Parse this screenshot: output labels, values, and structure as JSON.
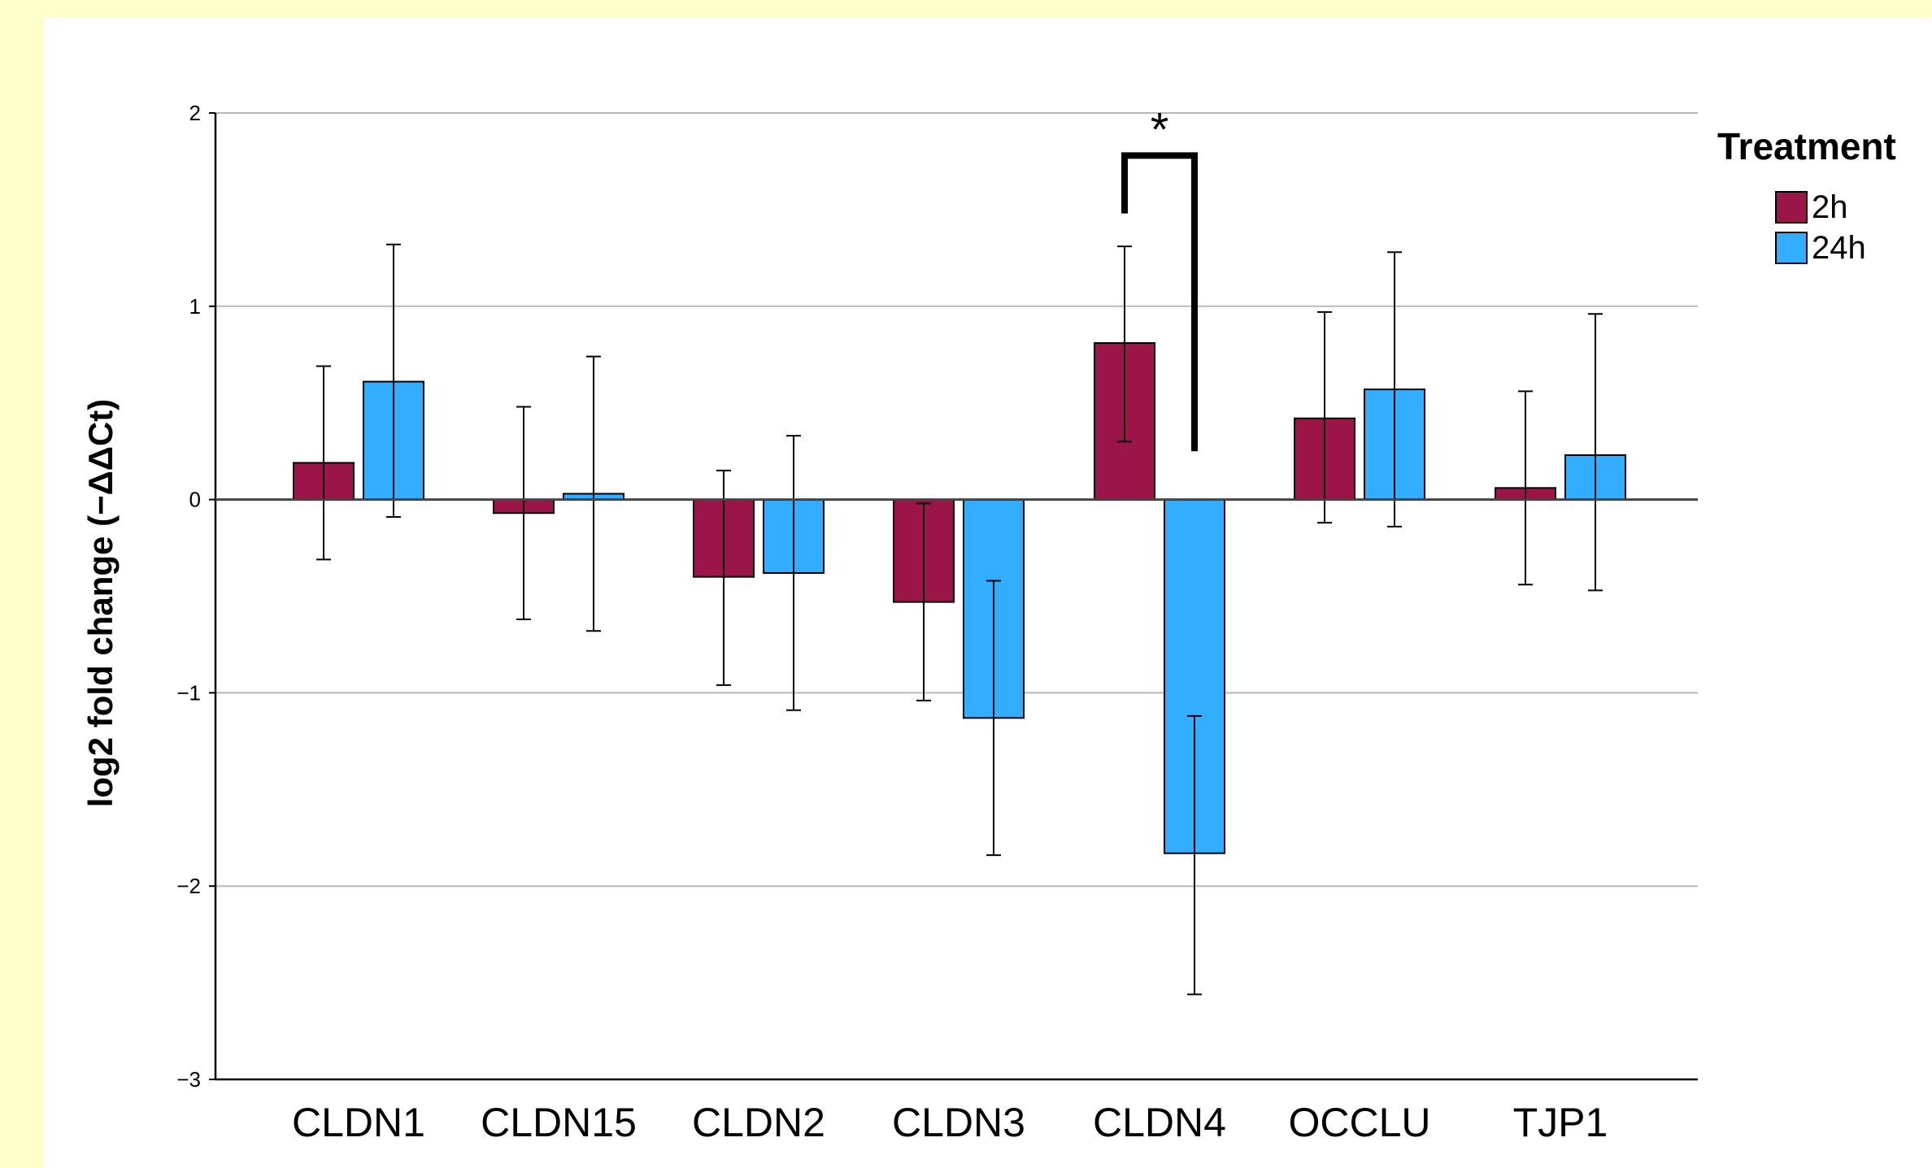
{
  "chart_data": {
    "type": "bar",
    "title": "",
    "xlabel": "",
    "ylabel": "log2 fold change (−ΔΔCt)",
    "ylim": [
      -3,
      2
    ],
    "yticks": [
      2,
      1,
      0,
      -1,
      -2,
      -3
    ],
    "ytick_labels": [
      "2",
      "1",
      "0",
      "−1",
      "−2",
      "−3"
    ],
    "grid": "horizontal",
    "categories": [
      "CLDN1",
      "CLDN15",
      "CLDN2",
      "CLDN3",
      "CLDN4",
      "OCCLU",
      "TJP1"
    ],
    "series": [
      {
        "name": "2h",
        "color": "#9c1548",
        "values": [
          0.19,
          -0.07,
          -0.4,
          -0.53,
          0.81,
          0.42,
          0.06
        ],
        "err_low": [
          -0.31,
          -0.62,
          -0.96,
          -1.04,
          0.3,
          -0.12,
          -0.44
        ],
        "err_high": [
          0.69,
          0.48,
          0.15,
          -0.02,
          1.31,
          0.97,
          0.56
        ]
      },
      {
        "name": "24h",
        "color": "#33adff",
        "values": [
          0.61,
          0.03,
          -0.38,
          -1.13,
          -1.83,
          0.57,
          0.23
        ],
        "err_low": [
          -0.09,
          -0.68,
          -1.09,
          -1.84,
          -2.56,
          -0.14,
          -0.47
        ],
        "err_high": [
          1.32,
          0.74,
          0.33,
          -0.42,
          -1.12,
          1.28,
          0.96
        ]
      }
    ],
    "legend": {
      "title": "Treatment",
      "placement": "right-top",
      "entries": [
        "2h",
        "24h"
      ]
    },
    "annotations": [
      {
        "type": "significance-bracket",
        "category": "CLDN4",
        "text": "*"
      }
    ]
  }
}
